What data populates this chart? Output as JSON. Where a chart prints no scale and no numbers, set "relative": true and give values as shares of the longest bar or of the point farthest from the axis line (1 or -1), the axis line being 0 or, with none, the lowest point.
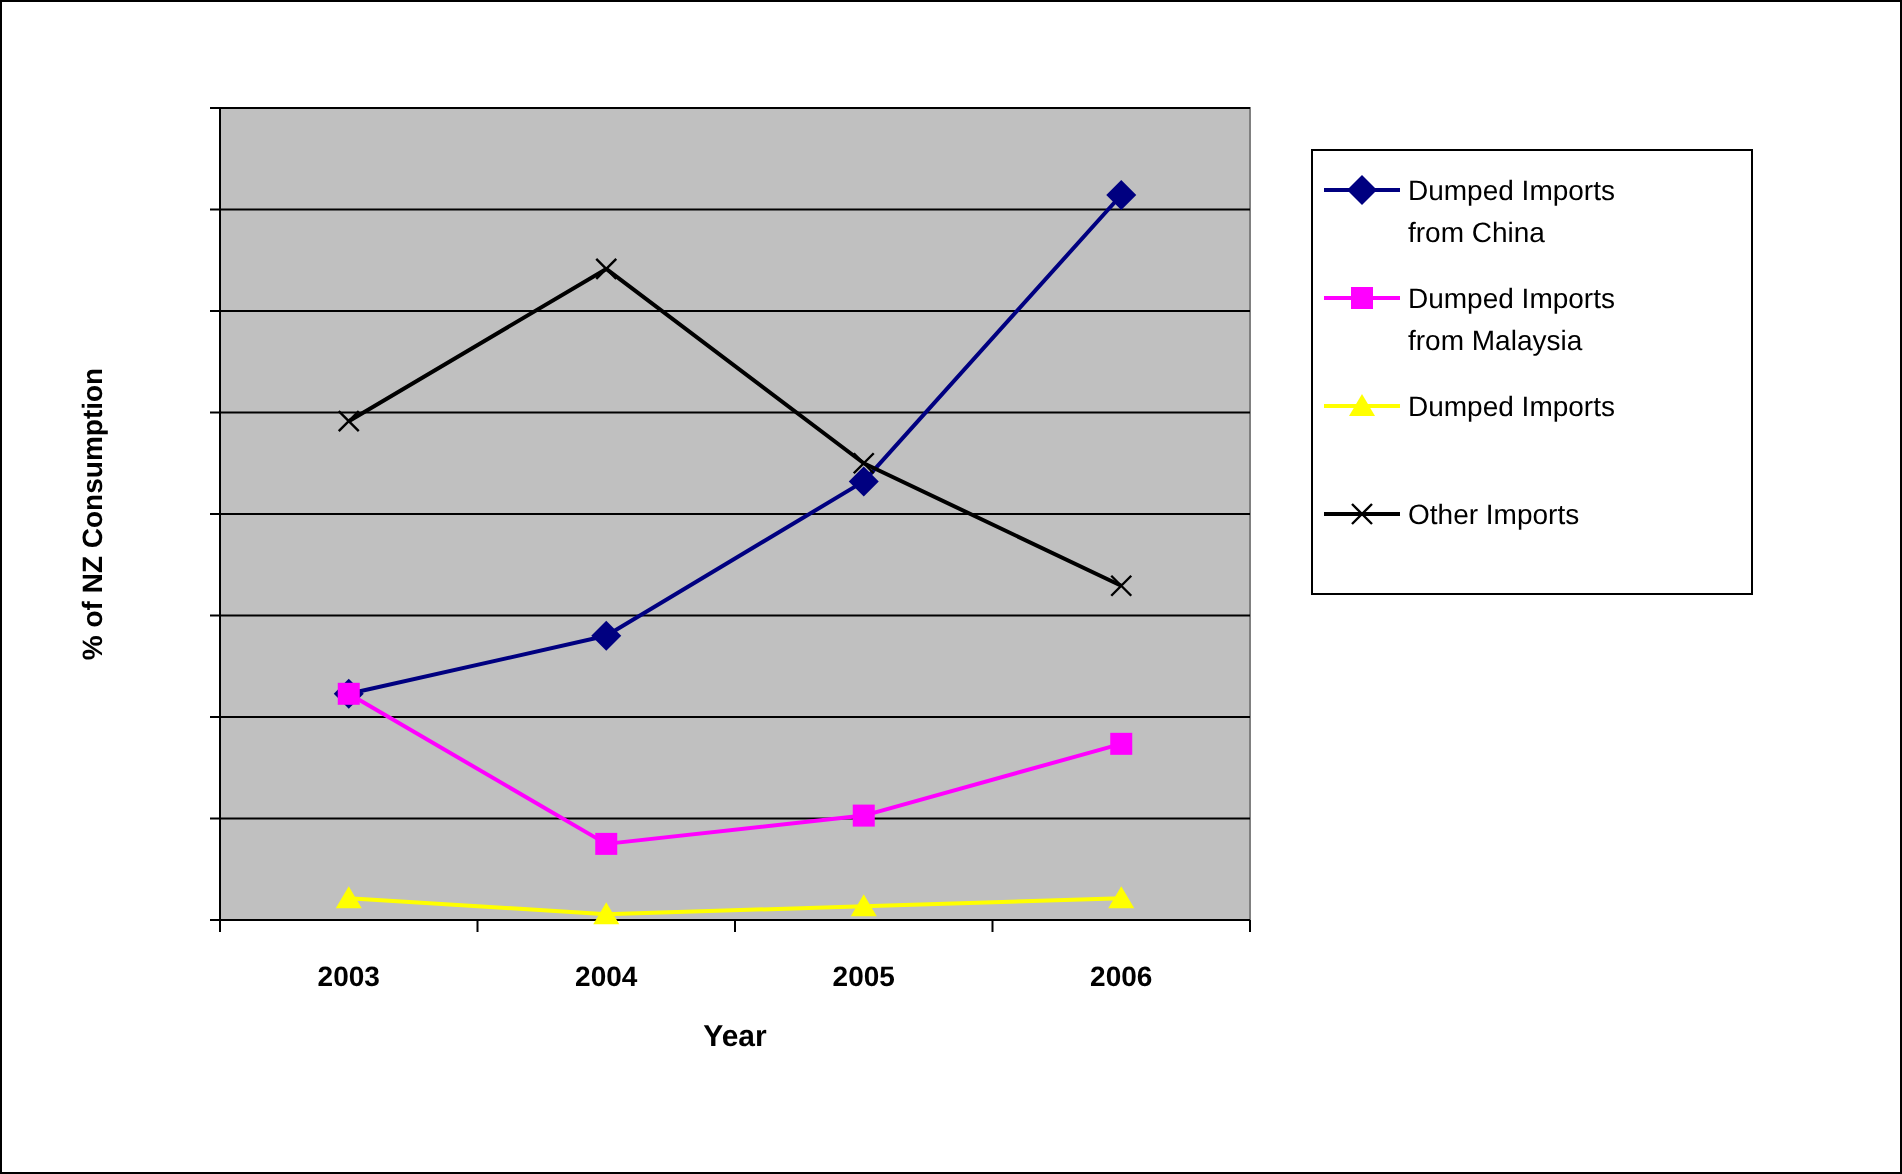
{
  "chart_data": {
    "type": "line",
    "xlabel": "Year",
    "ylabel": "% of NZ Consumption",
    "categories": [
      "2003",
      "2004",
      "2005",
      "2006"
    ],
    "relative": true,
    "grid": "y",
    "legend": "right",
    "series": [
      {
        "name": "Dumped Imports from China",
        "color": "#000080",
        "marker": "diamond",
        "values": [
          0.312,
          0.392,
          0.605,
          1
        ]
      },
      {
        "name": "Dumped Imports from Malaysia",
        "color": "#ff00ff",
        "marker": "square",
        "values": [
          0.312,
          0.105,
          0.144,
          0.243
        ]
      },
      {
        "name": "Dumped Imports",
        "color": "#ffff00",
        "marker": "triangle",
        "values": [
          0.03,
          0.008,
          0.019,
          0.03
        ]
      },
      {
        "name": "Other Imports",
        "color": "#000000",
        "marker": "cross",
        "values": [
          0.688,
          0.898,
          0.63,
          0.461
        ]
      }
    ]
  }
}
